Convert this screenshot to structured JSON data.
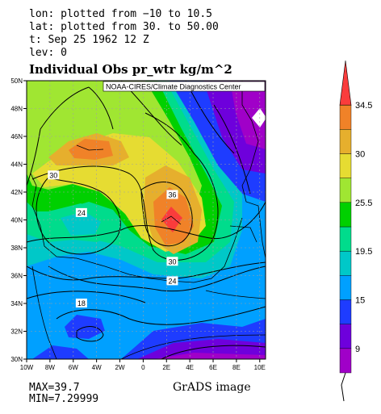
{
  "header": {
    "lon": "lon: plotted from −10 to 10.5",
    "lat": "lat: plotted from 30. to 50.00",
    "time": "t: Sep 25 1962 12 Z",
    "lev": "lev: 0"
  },
  "plot_title": "Individual Obs pr_wtr kg/m^2",
  "credit": "NOAA-CIRES/Climate Diagnostics Center",
  "footer": {
    "max": "MAX=39.7",
    "min": "MIN=7.29999",
    "image_label": "GrADS image"
  },
  "colors": {
    "levels": [
      "#a000c8",
      "#6e00dc",
      "#1e3cff",
      "#00a0ff",
      "#00c8c8",
      "#00dc8c",
      "#00d000",
      "#a0e632",
      "#e6dc32",
      "#e6af2d",
      "#f08228",
      "#fa3c3c"
    ]
  },
  "chart_data": {
    "type": "heatmap",
    "title": "Individual Obs pr_wtr kg/m^2",
    "x_range": [
      -10,
      10.5
    ],
    "y_range": [
      30,
      50
    ],
    "x_ticks": [
      "10W",
      "8W",
      "6W",
      "4W",
      "2W",
      "0",
      "2E",
      "4E",
      "6E",
      "8E",
      "10E"
    ],
    "y_ticks": [
      "30N",
      "32N",
      "34N",
      "36N",
      "38N",
      "40N",
      "42N",
      "44N",
      "46N",
      "48N",
      "50N"
    ],
    "grid": true,
    "colorbar": {
      "position": "right",
      "labels": [
        "9",
        "15",
        "19.5",
        "25.5",
        "30",
        "34.5"
      ]
    },
    "contour_labels": [
      {
        "text": "36",
        "lon": 2.5,
        "lat": 41.8
      },
      {
        "text": "30",
        "lon": -7.7,
        "lat": 43.2
      },
      {
        "text": "24",
        "lon": -5.3,
        "lat": 40.5
      },
      {
        "text": "30",
        "lon": 2.5,
        "lat": 37.0
      },
      {
        "text": "24",
        "lon": 2.5,
        "lat": 35.6
      },
      {
        "text": "18",
        "lon": -5.3,
        "lat": 34.0
      }
    ],
    "max": 39.7,
    "min": 7.29999
  }
}
